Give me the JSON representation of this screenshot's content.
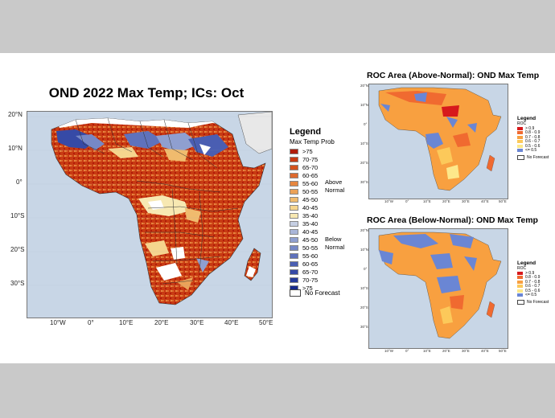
{
  "main_map": {
    "title": "OND 2022 Max Temp; ICs: Oct",
    "lat_ticks": [
      "20°N",
      "10°N",
      "0°",
      "10°S",
      "20°S",
      "30°S"
    ],
    "lon_ticks": [
      "10°W",
      "0°",
      "10°E",
      "20°E",
      "30°E",
      "40°E",
      "50°E"
    ],
    "legend": {
      "title": "Legend",
      "subtitle": "Max Temp Prob",
      "items": [
        {
          "label": ">75",
          "color": "#b01c0a"
        },
        {
          "label": "70-75",
          "color": "#c83a12"
        },
        {
          "label": "65-70",
          "color": "#d4521c"
        },
        {
          "label": "60-65",
          "color": "#dd6a2e"
        },
        {
          "label": "55-60",
          "color": "#e58640"
        },
        {
          "label": "50-55",
          "color": "#eba258"
        },
        {
          "label": "45-50",
          "color": "#f0bb6e"
        },
        {
          "label": "40-45",
          "color": "#f5d58e"
        },
        {
          "label": "35-40",
          "color": "#f7e8b2"
        },
        {
          "label": "35-40",
          "color": "#c6cfe3"
        },
        {
          "label": "40-45",
          "color": "#aab6d8"
        },
        {
          "label": "45-50",
          "color": "#8f9fd0"
        },
        {
          "label": "50-55",
          "color": "#7688c6"
        },
        {
          "label": "55-60",
          "color": "#5f72bc"
        },
        {
          "label": "60-65",
          "color": "#4a5eb2"
        },
        {
          "label": "65-70",
          "color": "#364aa6"
        },
        {
          "label": "70-75",
          "color": "#253a9a"
        },
        {
          "label": ">75",
          "color": "#172a8c"
        }
      ],
      "above_label": "Above",
      "above_normal": "Normal",
      "below_label": "Below",
      "below_normal": "Normal",
      "no_forecast": "No Forecast"
    }
  },
  "roc_above": {
    "title": "ROC Area (Above-Normal): OND Max Temp",
    "legend_title": "Legend",
    "legend_sub": "ROC",
    "items": [
      {
        "label": "> 0.9",
        "color": "#d7191c"
      },
      {
        "label": "0.8 - 0.9",
        "color": "#f06a30"
      },
      {
        "label": "0.7 - 0.8",
        "color": "#f8a040"
      },
      {
        "label": "0.6 - 0.7",
        "color": "#fcc95a"
      },
      {
        "label": "0.5 - 0.6",
        "color": "#fde88a"
      },
      {
        "label": "<= 0.5",
        "color": "#6a86d4"
      }
    ],
    "no_forecast": "No Forecast"
  },
  "roc_below": {
    "title": "ROC Area (Below-Normal): OND Max Temp",
    "legend_title": "Legend",
    "legend_sub": "ROC",
    "items": [
      {
        "label": "> 0.9",
        "color": "#d7191c"
      },
      {
        "label": "0.8 - 0.9",
        "color": "#f06a30"
      },
      {
        "label": "0.7 - 0.8",
        "color": "#f8a040"
      },
      {
        "label": "0.6 - 0.7",
        "color": "#fcc95a"
      },
      {
        "label": "0.5 - 0.6",
        "color": "#fde88a"
      },
      {
        "label": "<= 0.5",
        "color": "#6a86d4"
      }
    ],
    "no_forecast": "No Forecast"
  },
  "small_lat_ticks": [
    "20°N",
    "10°N",
    "0°",
    "10°S",
    "20°S",
    "30°S"
  ],
  "small_lon_ticks": [
    "10°W",
    "0°",
    "10°E",
    "20°E",
    "30°E",
    "40°E",
    "50°E"
  ],
  "colors": {
    "ocean": "#c8d6e6",
    "slide_bg": "#ffffff",
    "frame_bg": "#c9c9c9"
  }
}
